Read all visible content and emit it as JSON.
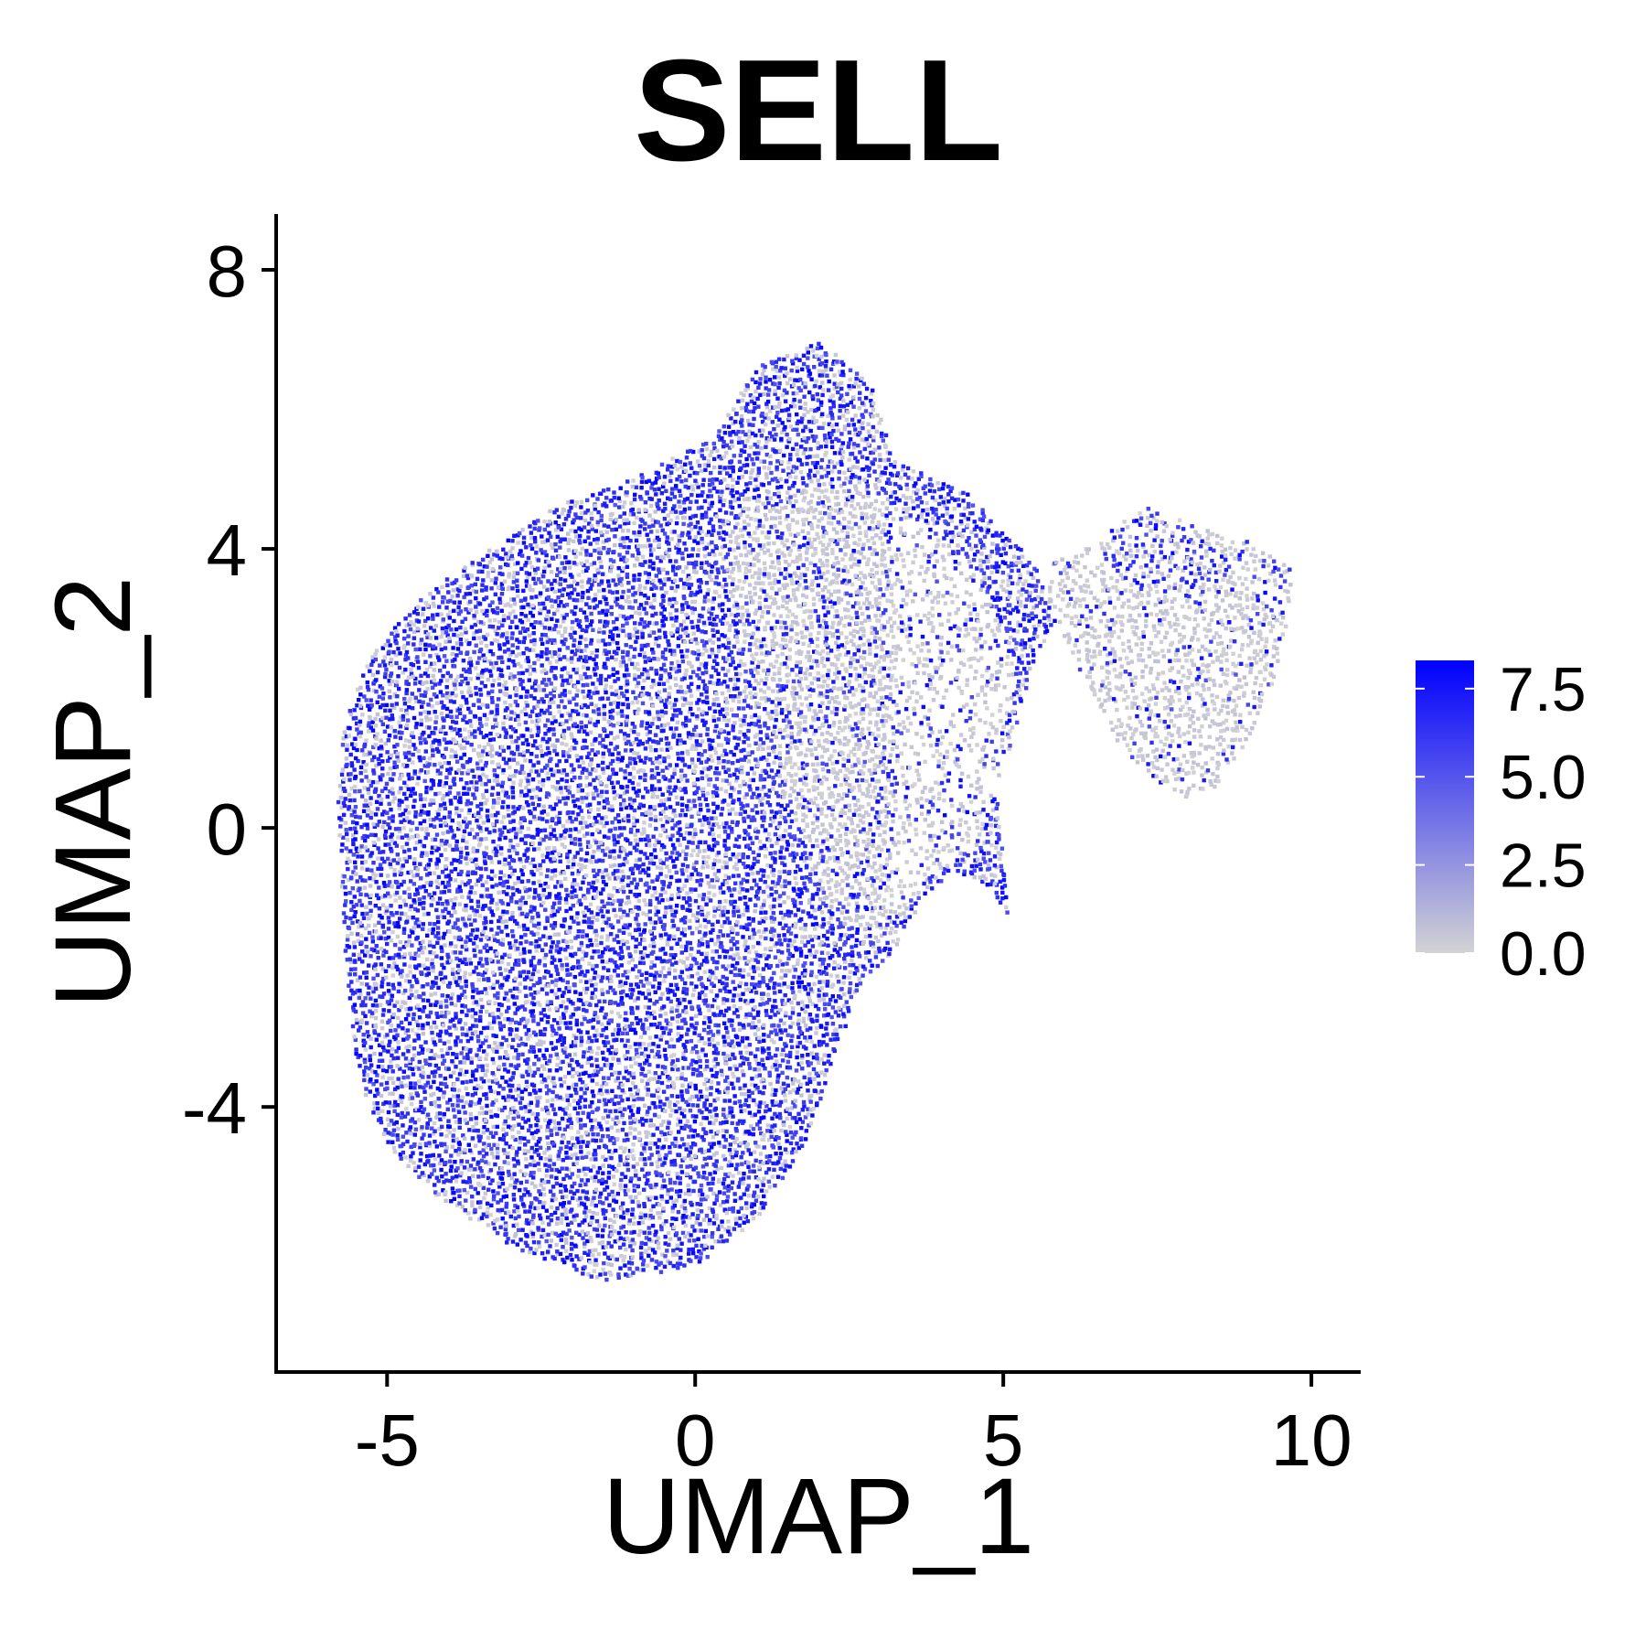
{
  "chart_data": {
    "type": "scatter",
    "title": "SELL",
    "xlabel": "UMAP_1",
    "ylabel": "UMAP_2",
    "xlim": [
      -6.8,
      10.8
    ],
    "ylim": [
      -7.8,
      8.8
    ],
    "x_ticks": [
      -5,
      0,
      5,
      10
    ],
    "y_ticks": [
      -4,
      0,
      4,
      8
    ],
    "x_tick_labels": [
      "-5",
      "0",
      "5",
      "10"
    ],
    "y_tick_labels": [
      "-4",
      "0",
      "4",
      "8"
    ],
    "grid": false,
    "legend_position": "right",
    "color_scale": {
      "low_color": "#d3d3d3",
      "high_color": "#0000ff",
      "min": 0.0,
      "max": 8.3,
      "ticks": [
        0.0,
        2.5,
        5.0,
        7.5
      ],
      "tick_labels": [
        "0.0",
        "2.5",
        "5.0",
        "7.5"
      ]
    },
    "regions": [
      {
        "name": "main cluster",
        "expression": "high",
        "outline": [
          [
            -5.7,
            1.5
          ],
          [
            -5.8,
            0.5
          ],
          [
            -5.7,
            -1.5
          ],
          [
            -5.5,
            -3.5
          ],
          [
            -5.0,
            -4.6
          ],
          [
            -4.2,
            -5.3
          ],
          [
            -3.0,
            -6.0
          ],
          [
            -1.5,
            -6.5
          ],
          [
            0.0,
            -6.3
          ],
          [
            1.0,
            -5.6
          ],
          [
            1.8,
            -4.5
          ],
          [
            2.3,
            -3.2
          ],
          [
            2.7,
            -2.2
          ],
          [
            3.2,
            -1.8
          ],
          [
            3.7,
            -1.0
          ],
          [
            4.2,
            -0.6
          ],
          [
            4.8,
            -0.9
          ],
          [
            5.1,
            -1.3
          ],
          [
            4.9,
            0.6
          ],
          [
            5.2,
            1.4
          ],
          [
            5.5,
            2.4
          ],
          [
            6.0,
            3.2
          ],
          [
            5.3,
            4.0
          ],
          [
            4.4,
            4.8
          ],
          [
            3.2,
            5.3
          ],
          [
            2.9,
            6.3
          ],
          [
            2.0,
            7.0
          ],
          [
            1.0,
            6.6
          ],
          [
            0.3,
            5.6
          ],
          [
            -1.0,
            5.0
          ],
          [
            -2.3,
            4.6
          ],
          [
            -3.3,
            4.0
          ],
          [
            -4.3,
            3.4
          ],
          [
            -5.2,
            2.6
          ]
        ]
      },
      {
        "name": "center-right zone",
        "expression": "low",
        "outline": [
          [
            0.8,
            4.8
          ],
          [
            2.5,
            5.0
          ],
          [
            3.6,
            4.4
          ],
          [
            4.6,
            3.6
          ],
          [
            5.2,
            2.3
          ],
          [
            5.0,
            0.9
          ],
          [
            4.6,
            -0.3
          ],
          [
            3.8,
            -0.7
          ],
          [
            3.0,
            -1.6
          ],
          [
            2.2,
            -1.2
          ],
          [
            1.6,
            0.3
          ],
          [
            1.0,
            2.0
          ],
          [
            0.5,
            3.6
          ]
        ]
      },
      {
        "name": "upper tip",
        "expression": "high",
        "outline": [
          [
            0.6,
            5.8
          ],
          [
            1.0,
            6.6
          ],
          [
            1.8,
            7.0
          ],
          [
            2.6,
            6.6
          ],
          [
            3.0,
            5.8
          ],
          [
            2.4,
            5.3
          ],
          [
            1.4,
            5.2
          ]
        ]
      },
      {
        "name": "lower-right lobe",
        "expression": "high",
        "outline": [
          [
            4.3,
            -0.4
          ],
          [
            4.9,
            -0.5
          ],
          [
            5.1,
            -1.2
          ],
          [
            4.7,
            -1.8
          ],
          [
            4.2,
            -2.0
          ],
          [
            3.7,
            -1.6
          ],
          [
            3.8,
            -0.9
          ]
        ]
      },
      {
        "name": "right cluster",
        "expression": "low",
        "outline": [
          [
            5.8,
            3.8
          ],
          [
            6.5,
            4.1
          ],
          [
            7.3,
            4.6
          ],
          [
            8.2,
            4.3
          ],
          [
            9.0,
            4.1
          ],
          [
            9.7,
            3.7
          ],
          [
            9.6,
            2.9
          ],
          [
            9.4,
            2.1
          ],
          [
            9.0,
            1.3
          ],
          [
            8.5,
            0.6
          ],
          [
            8.0,
            0.4
          ],
          [
            7.4,
            0.7
          ],
          [
            6.8,
            1.3
          ],
          [
            6.4,
            2.0
          ],
          [
            6.0,
            2.7
          ],
          [
            5.7,
            3.3
          ]
        ]
      },
      {
        "name": "right cluster top band",
        "expression": "high",
        "outline": [
          [
            6.5,
            4.0
          ],
          [
            7.3,
            4.6
          ],
          [
            8.2,
            4.3
          ],
          [
            8.7,
            3.8
          ],
          [
            8.4,
            3.3
          ],
          [
            7.5,
            3.3
          ],
          [
            6.8,
            3.5
          ]
        ]
      },
      {
        "name": "right cluster tip",
        "expression": "high",
        "outline": [
          [
            9.0,
            3.8
          ],
          [
            9.7,
            3.9
          ],
          [
            9.8,
            3.2
          ],
          [
            9.4,
            3.0
          ],
          [
            9.0,
            3.3
          ]
        ]
      }
    ]
  }
}
